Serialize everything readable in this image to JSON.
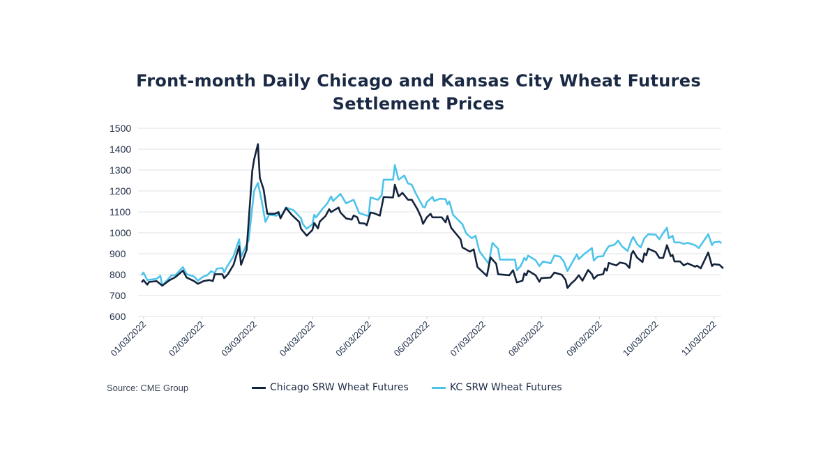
{
  "chart_data": {
    "type": "line",
    "title": "Front-month Daily Chicago and Kansas City Wheat Futures Settlement Prices",
    "title_lines": [
      "Front-month Daily Chicago and Kansas City Wheat Futures",
      "Settlement Prices"
    ],
    "xlabel": "",
    "ylabel": "",
    "ylim": [
      600,
      1500
    ],
    "yticks": [
      600,
      700,
      800,
      900,
      1000,
      1100,
      1200,
      1300,
      1400,
      1500
    ],
    "xlim": [
      "2022-01-03",
      "2022-11-09"
    ],
    "xticks": [
      {
        "date": "2022-01-03",
        "label": "01/03/2022"
      },
      {
        "date": "2022-02-03",
        "label": "02/03/2022"
      },
      {
        "date": "2022-03-03",
        "label": "03/03/2022"
      },
      {
        "date": "2022-04-03",
        "label": "04/03/2022"
      },
      {
        "date": "2022-05-03",
        "label": "05/03/2022"
      },
      {
        "date": "2022-06-03",
        "label": "06/03/2022"
      },
      {
        "date": "2022-07-03",
        "label": "07/03/2022"
      },
      {
        "date": "2022-08-03",
        "label": "08/03/2022"
      },
      {
        "date": "2022-09-03",
        "label": "09/03/2022"
      },
      {
        "date": "2022-10-03",
        "label": "10/03/2022"
      },
      {
        "date": "2022-11-03",
        "label": "11/03/2022"
      }
    ],
    "grid": true,
    "legend_position": "bottom",
    "source": "Source: CME Group",
    "series": [
      {
        "name": "Chicago SRW Wheat Futures",
        "color": "#14233c",
        "points": [
          [
            "2022-01-03",
            763
          ],
          [
            "2022-01-04",
            774
          ],
          [
            "2022-01-06",
            752
          ],
          [
            "2022-01-07",
            765
          ],
          [
            "2022-01-11",
            769
          ],
          [
            "2022-01-14",
            747
          ],
          [
            "2022-01-18",
            774
          ],
          [
            "2022-01-21",
            788
          ],
          [
            "2022-01-25",
            819
          ],
          [
            "2022-01-27",
            786
          ],
          [
            "2022-01-31",
            769
          ],
          [
            "2022-02-02",
            756
          ],
          [
            "2022-02-05",
            769
          ],
          [
            "2022-02-08",
            774
          ],
          [
            "2022-02-10",
            769
          ],
          [
            "2022-02-11",
            802
          ],
          [
            "2022-02-15",
            802
          ],
          [
            "2022-02-16",
            783
          ],
          [
            "2022-02-18",
            802
          ],
          [
            "2022-02-21",
            847
          ],
          [
            "2022-02-24",
            936
          ],
          [
            "2022-02-25",
            847
          ],
          [
            "2022-02-28",
            919
          ],
          [
            "2022-03-03",
            1297
          ],
          [
            "2022-03-04",
            1352
          ],
          [
            "2022-03-06",
            1424
          ],
          [
            "2022-03-07",
            1263
          ],
          [
            "2022-03-09",
            1208
          ],
          [
            "2022-03-11",
            1091
          ],
          [
            "2022-03-15",
            1091
          ],
          [
            "2022-03-17",
            1099
          ],
          [
            "2022-03-18",
            1069
          ],
          [
            "2022-03-21",
            1119
          ],
          [
            "2022-03-24",
            1086
          ],
          [
            "2022-03-28",
            1052
          ],
          [
            "2022-03-29",
            1019
          ],
          [
            "2022-04-01",
            986
          ],
          [
            "2022-04-04",
            1013
          ],
          [
            "2022-04-05",
            1047
          ],
          [
            "2022-04-07",
            1021
          ],
          [
            "2022-04-08",
            1054
          ],
          [
            "2022-04-11",
            1080
          ],
          [
            "2022-04-13",
            1113
          ],
          [
            "2022-04-14",
            1099
          ],
          [
            "2022-04-18",
            1121
          ],
          [
            "2022-04-19",
            1097
          ],
          [
            "2022-04-22",
            1069
          ],
          [
            "2022-04-25",
            1063
          ],
          [
            "2022-04-26",
            1083
          ],
          [
            "2022-04-28",
            1074
          ],
          [
            "2022-04-29",
            1047
          ],
          [
            "2022-05-02",
            1044
          ],
          [
            "2022-05-03",
            1036
          ],
          [
            "2022-05-05",
            1097
          ],
          [
            "2022-05-07",
            1093
          ],
          [
            "2022-05-10",
            1082
          ],
          [
            "2022-05-12",
            1171
          ],
          [
            "2022-05-17",
            1169
          ],
          [
            "2022-05-18",
            1230
          ],
          [
            "2022-05-20",
            1174
          ],
          [
            "2022-05-22",
            1191
          ],
          [
            "2022-05-25",
            1158
          ],
          [
            "2022-05-27",
            1158
          ],
          [
            "2022-05-30",
            1113
          ],
          [
            "2022-06-01",
            1074
          ],
          [
            "2022-06-02",
            1043
          ],
          [
            "2022-06-03",
            1058
          ],
          [
            "2022-06-04",
            1074
          ],
          [
            "2022-06-06",
            1091
          ],
          [
            "2022-06-07",
            1074
          ],
          [
            "2022-06-12",
            1074
          ],
          [
            "2022-06-14",
            1050
          ],
          [
            "2022-06-15",
            1080
          ],
          [
            "2022-06-17",
            1024
          ],
          [
            "2022-06-22",
            969
          ],
          [
            "2022-06-23",
            930
          ],
          [
            "2022-06-27",
            910
          ],
          [
            "2022-06-29",
            921
          ],
          [
            "2022-07-01",
            836
          ],
          [
            "2022-07-06",
            794
          ],
          [
            "2022-07-08",
            882
          ],
          [
            "2022-07-11",
            852
          ],
          [
            "2022-07-12",
            802
          ],
          [
            "2022-07-18",
            797
          ],
          [
            "2022-07-20",
            821
          ],
          [
            "2022-07-22",
            763
          ],
          [
            "2022-07-25",
            771
          ],
          [
            "2022-07-26",
            806
          ],
          [
            "2022-07-27",
            797
          ],
          [
            "2022-07-28",
            819
          ],
          [
            "2022-08-01",
            797
          ],
          [
            "2022-08-03",
            766
          ],
          [
            "2022-08-04",
            783
          ],
          [
            "2022-08-09",
            786
          ],
          [
            "2022-08-11",
            810
          ],
          [
            "2022-08-15",
            799
          ],
          [
            "2022-08-17",
            774
          ],
          [
            "2022-08-18",
            736
          ],
          [
            "2022-08-20",
            758
          ],
          [
            "2022-08-22",
            774
          ],
          [
            "2022-08-24",
            797
          ],
          [
            "2022-08-26",
            771
          ],
          [
            "2022-08-29",
            822
          ],
          [
            "2022-08-31",
            802
          ],
          [
            "2022-09-01",
            780
          ],
          [
            "2022-09-03",
            797
          ],
          [
            "2022-09-06",
            802
          ],
          [
            "2022-09-07",
            830
          ],
          [
            "2022-09-08",
            819
          ],
          [
            "2022-09-09",
            856
          ],
          [
            "2022-09-13",
            844
          ],
          [
            "2022-09-15",
            858
          ],
          [
            "2022-09-18",
            852
          ],
          [
            "2022-09-20",
            832
          ],
          [
            "2022-09-21",
            897
          ],
          [
            "2022-09-22",
            913
          ],
          [
            "2022-09-24",
            882
          ],
          [
            "2022-09-27",
            860
          ],
          [
            "2022-09-28",
            902
          ],
          [
            "2022-09-29",
            893
          ],
          [
            "2022-09-30",
            924
          ],
          [
            "2022-10-04",
            908
          ],
          [
            "2022-10-06",
            880
          ],
          [
            "2022-10-08",
            880
          ],
          [
            "2022-10-10",
            941
          ],
          [
            "2022-10-12",
            888
          ],
          [
            "2022-10-13",
            894
          ],
          [
            "2022-10-14",
            863
          ],
          [
            "2022-10-17",
            863
          ],
          [
            "2022-10-19",
            844
          ],
          [
            "2022-10-21",
            854
          ],
          [
            "2022-10-25",
            838
          ],
          [
            "2022-10-26",
            843
          ],
          [
            "2022-10-28",
            830
          ],
          [
            "2022-11-01",
            906
          ],
          [
            "2022-11-03",
            841
          ],
          [
            "2022-11-04",
            850
          ],
          [
            "2022-11-07",
            847
          ],
          [
            "2022-11-09",
            830
          ]
        ]
      },
      {
        "name": "KC SRW Wheat Futures",
        "color": "#4ec3ea",
        "points": [
          [
            "2022-01-03",
            797
          ],
          [
            "2022-01-04",
            810
          ],
          [
            "2022-01-06",
            774
          ],
          [
            "2022-01-11",
            780
          ],
          [
            "2022-01-13",
            794
          ],
          [
            "2022-01-14",
            747
          ],
          [
            "2022-01-19",
            797
          ],
          [
            "2022-01-21",
            797
          ],
          [
            "2022-01-25",
            836
          ],
          [
            "2022-01-27",
            802
          ],
          [
            "2022-01-31",
            791
          ],
          [
            "2022-02-02",
            771
          ],
          [
            "2022-02-05",
            791
          ],
          [
            "2022-02-07",
            797
          ],
          [
            "2022-02-09",
            816
          ],
          [
            "2022-02-11",
            808
          ],
          [
            "2022-02-12",
            828
          ],
          [
            "2022-02-15",
            832
          ],
          [
            "2022-02-16",
            810
          ],
          [
            "2022-02-17",
            830
          ],
          [
            "2022-02-21",
            888
          ],
          [
            "2022-02-24",
            969
          ],
          [
            "2022-02-25",
            886
          ],
          [
            "2022-03-01",
            963
          ],
          [
            "2022-03-04",
            1202
          ],
          [
            "2022-03-06",
            1239
          ],
          [
            "2022-03-08",
            1152
          ],
          [
            "2022-03-10",
            1052
          ],
          [
            "2022-03-12",
            1086
          ],
          [
            "2022-03-16",
            1082
          ],
          [
            "2022-03-17",
            1091
          ],
          [
            "2022-03-18",
            1074
          ],
          [
            "2022-03-21",
            1121
          ],
          [
            "2022-03-25",
            1108
          ],
          [
            "2022-03-29",
            1069
          ],
          [
            "2022-03-30",
            1041
          ],
          [
            "2022-04-01",
            1019
          ],
          [
            "2022-04-04",
            1041
          ],
          [
            "2022-04-05",
            1086
          ],
          [
            "2022-04-06",
            1074
          ],
          [
            "2022-04-09",
            1110
          ],
          [
            "2022-04-12",
            1141
          ],
          [
            "2022-04-14",
            1174
          ],
          [
            "2022-04-15",
            1152
          ],
          [
            "2022-04-19",
            1186
          ],
          [
            "2022-04-22",
            1141
          ],
          [
            "2022-04-26",
            1158
          ],
          [
            "2022-04-29",
            1094
          ],
          [
            "2022-05-04",
            1080
          ],
          [
            "2022-05-05",
            1169
          ],
          [
            "2022-05-09",
            1158
          ],
          [
            "2022-05-11",
            1180
          ],
          [
            "2022-05-12",
            1254
          ],
          [
            "2022-05-17",
            1254
          ],
          [
            "2022-05-18",
            1324
          ],
          [
            "2022-05-20",
            1254
          ],
          [
            "2022-05-23",
            1274
          ],
          [
            "2022-05-25",
            1236
          ],
          [
            "2022-05-27",
            1230
          ],
          [
            "2022-05-29",
            1191
          ],
          [
            "2022-06-02",
            1124
          ],
          [
            "2022-06-03",
            1121
          ],
          [
            "2022-06-04",
            1147
          ],
          [
            "2022-06-07",
            1172
          ],
          [
            "2022-06-08",
            1152
          ],
          [
            "2022-06-11",
            1163
          ],
          [
            "2022-06-14",
            1161
          ],
          [
            "2022-06-15",
            1136
          ],
          [
            "2022-06-16",
            1150
          ],
          [
            "2022-06-18",
            1086
          ],
          [
            "2022-06-23",
            1041
          ],
          [
            "2022-06-25",
            997
          ],
          [
            "2022-06-28",
            974
          ],
          [
            "2022-06-30",
            986
          ],
          [
            "2022-07-02",
            913
          ],
          [
            "2022-07-07",
            852
          ],
          [
            "2022-07-09",
            952
          ],
          [
            "2022-07-12",
            924
          ],
          [
            "2022-07-13",
            872
          ],
          [
            "2022-07-21",
            872
          ],
          [
            "2022-07-22",
            821
          ],
          [
            "2022-07-24",
            841
          ],
          [
            "2022-07-26",
            880
          ],
          [
            "2022-07-27",
            869
          ],
          [
            "2022-07-28",
            891
          ],
          [
            "2022-08-01",
            869
          ],
          [
            "2022-08-03",
            841
          ],
          [
            "2022-08-05",
            863
          ],
          [
            "2022-08-09",
            854
          ],
          [
            "2022-08-11",
            891
          ],
          [
            "2022-08-14",
            886
          ],
          [
            "2022-08-16",
            863
          ],
          [
            "2022-08-18",
            817
          ],
          [
            "2022-08-20",
            850
          ],
          [
            "2022-08-23",
            897
          ],
          [
            "2022-08-24",
            874
          ],
          [
            "2022-08-27",
            899
          ],
          [
            "2022-08-31",
            927
          ],
          [
            "2022-09-01",
            867
          ],
          [
            "2022-09-03",
            886
          ],
          [
            "2022-09-06",
            888
          ],
          [
            "2022-09-07",
            908
          ],
          [
            "2022-09-09",
            936
          ],
          [
            "2022-09-12",
            943
          ],
          [
            "2022-09-14",
            963
          ],
          [
            "2022-09-16",
            936
          ],
          [
            "2022-09-19",
            913
          ],
          [
            "2022-09-21",
            963
          ],
          [
            "2022-09-22",
            980
          ],
          [
            "2022-09-24",
            947
          ],
          [
            "2022-09-26",
            930
          ],
          [
            "2022-09-28",
            974
          ],
          [
            "2022-09-30",
            993
          ],
          [
            "2022-10-04",
            991
          ],
          [
            "2022-10-06",
            969
          ],
          [
            "2022-10-07",
            986
          ],
          [
            "2022-10-10",
            1024
          ],
          [
            "2022-10-11",
            974
          ],
          [
            "2022-10-13",
            986
          ],
          [
            "2022-10-14",
            954
          ],
          [
            "2022-10-17",
            954
          ],
          [
            "2022-10-19",
            947
          ],
          [
            "2022-10-21",
            952
          ],
          [
            "2022-10-25",
            941
          ],
          [
            "2022-10-27",
            927
          ],
          [
            "2022-11-01",
            993
          ],
          [
            "2022-11-03",
            941
          ],
          [
            "2022-11-04",
            954
          ],
          [
            "2022-11-07",
            958
          ],
          [
            "2022-11-08",
            950
          ]
        ]
      }
    ]
  }
}
